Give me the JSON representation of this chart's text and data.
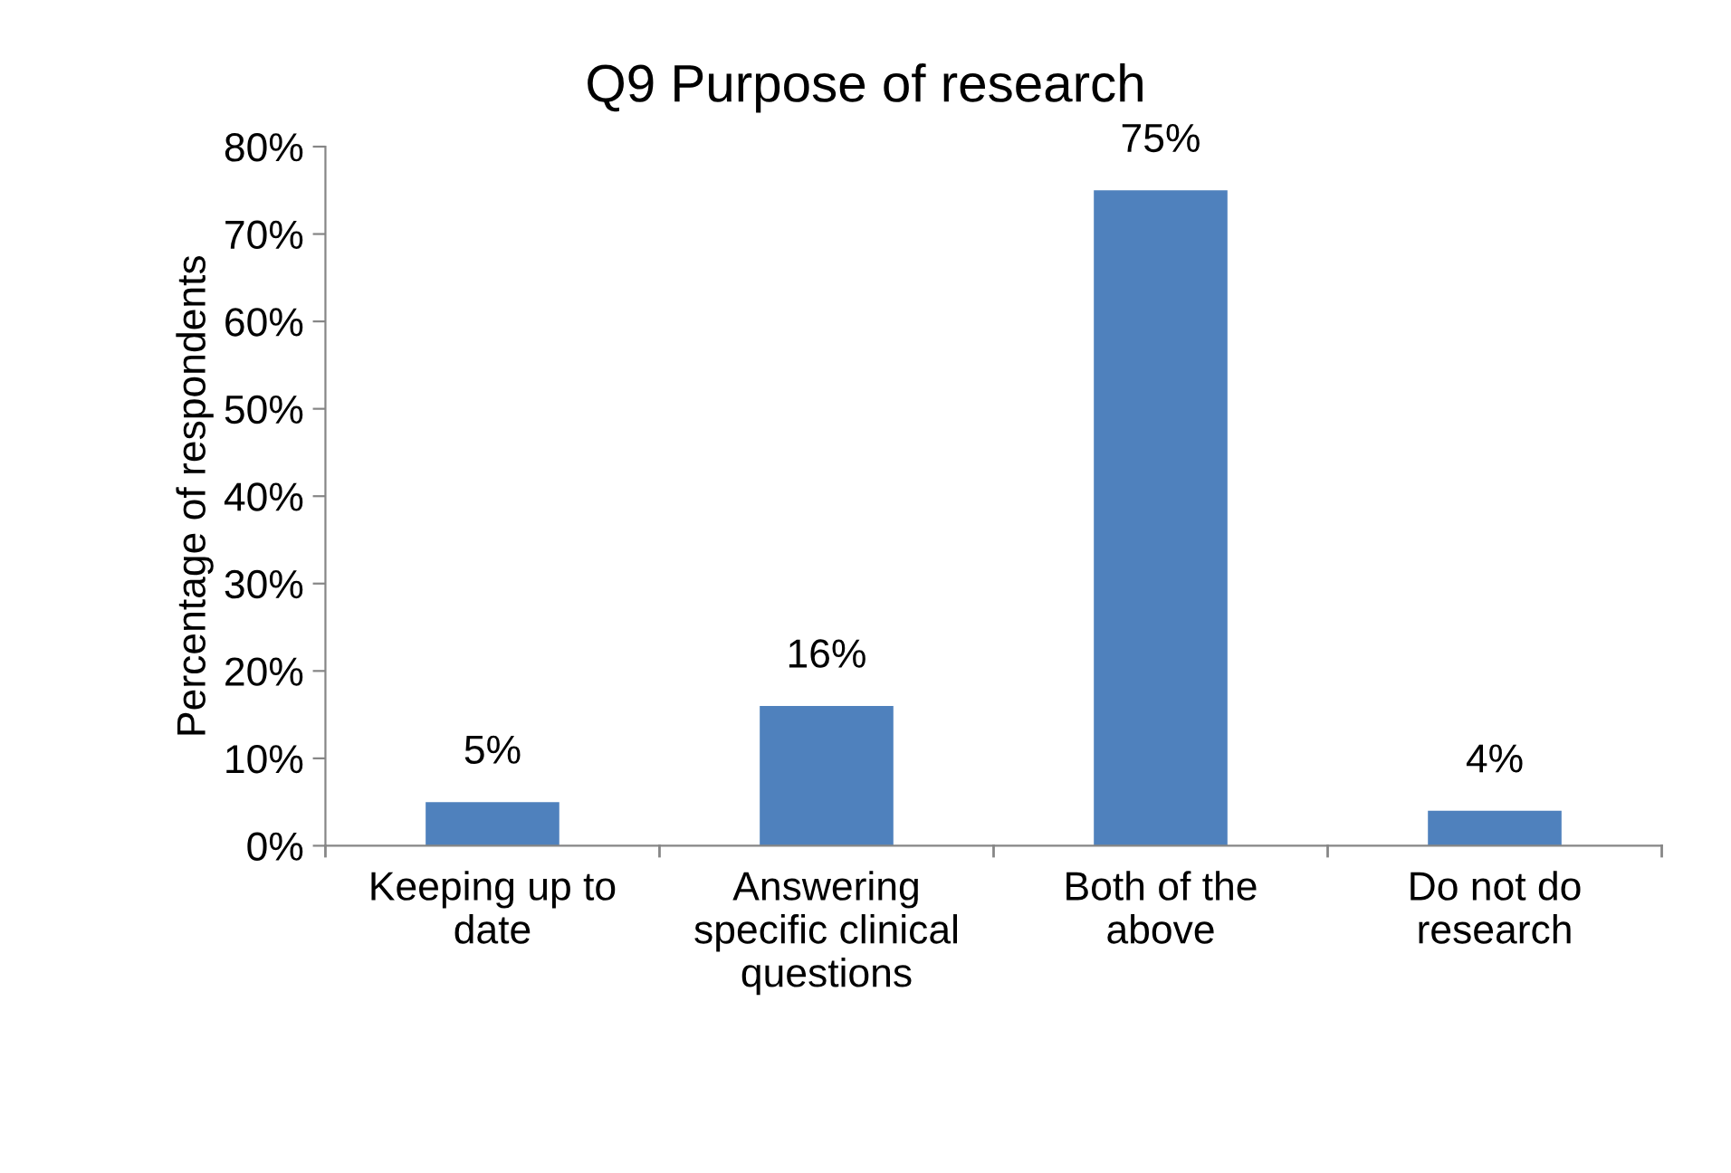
{
  "chart_data": {
    "type": "bar",
    "title": "Q9 Purpose of research",
    "ylabel": "Percentage of respondents",
    "categories": [
      "Keeping up to\ndate",
      "Answering\nspecific clinical\nquestions",
      "Both of the\nabove",
      "Do not do\nresearch"
    ],
    "values": [
      5,
      16,
      75,
      4
    ],
    "color": "#4f81bd",
    "value_labels": [
      "5%",
      "16%",
      "75%",
      "4%"
    ],
    "ylim": [
      0,
      80
    ],
    "yticks": [
      {
        "value": 0,
        "label": "0%"
      },
      {
        "value": 10,
        "label": "10%"
      },
      {
        "value": 20,
        "label": "20%"
      },
      {
        "value": 30,
        "label": "30%"
      },
      {
        "value": 40,
        "label": "40%"
      },
      {
        "value": 50,
        "label": "50%"
      },
      {
        "value": 60,
        "label": "60%"
      },
      {
        "value": 70,
        "label": "70%"
      },
      {
        "value": 80,
        "label": "80%"
      }
    ],
    "grid": false,
    "legend": false
  }
}
